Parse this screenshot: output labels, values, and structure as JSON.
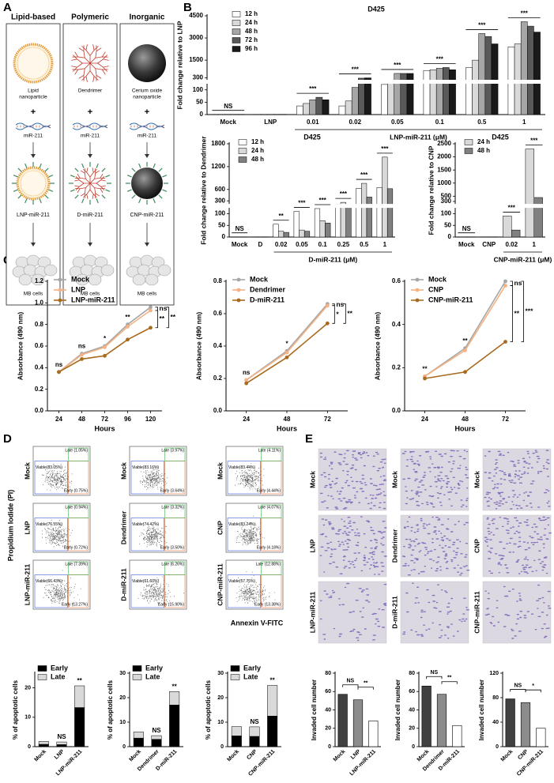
{
  "panel_labels": [
    "A",
    "B",
    "C",
    "D",
    "E"
  ],
  "diagram": {
    "columns": [
      {
        "header": "Lipid-based",
        "carrier": [
          "Lipid",
          "nanoparticle"
        ],
        "plus": "+",
        "mirna": "miR-211",
        "complex": "LNP-miR-211",
        "cells": "MB cells"
      },
      {
        "header": "Polymeric",
        "carrier": [
          "Dendrimer"
        ],
        "plus": "+",
        "mirna": "miR-211",
        "complex": "D-miR-211",
        "cells": "MB cells"
      },
      {
        "header": "Inorganic",
        "carrier": [
          "Cerium oxide",
          "nanoparticle"
        ],
        "plus": "+",
        "mirna": "miR-211",
        "complex": "CNP-miR-211",
        "cells": "MB cells"
      }
    ]
  },
  "flow": {
    "y_label": "Propidium Iodide (PI)",
    "x_label": "Annexin V-FITC",
    "columns": [
      [
        {
          "name": "Mock",
          "late": "Late (1.05%)",
          "viable": "Viable(83.05%)",
          "early": "Early (0.75%)"
        },
        {
          "name": "LNP",
          "late": "Late (0.94%)",
          "viable": "Viable(76.55%)",
          "early": "Early (0.72%)"
        },
        {
          "name": "LNP-miR-211",
          "late": "Late (7.39%)",
          "viable": "Viable(66.43%)",
          "early": "Early (13.27%)"
        }
      ],
      [
        {
          "name": "Mock",
          "late": "Late (3.97%)",
          "viable": "Viable(83.16%)",
          "early": "Early (3.64%)"
        },
        {
          "name": "Dendrimer",
          "late": "Late (3.32%)",
          "viable": "Viable(74.42%)",
          "early": "Early (3.50%)"
        },
        {
          "name": "D-miR-211",
          "late": "Late (6.26%)",
          "viable": "Viable(61.60%)",
          "early": "Early (15.90%)"
        }
      ],
      [
        {
          "name": "Mock",
          "late": "Late (4.11%)",
          "viable": "Viable(83.44%)",
          "early": "Early (4.44%)"
        },
        {
          "name": "CNP",
          "late": "Late (4.07%)",
          "viable": "Viable(83.24%)",
          "early": "Early (4.18%)"
        },
        {
          "name": "CNP-miR-211",
          "late": "Late (12.88%)",
          "viable": "Viable(57.75%)",
          "early": "Early (13.38%)"
        }
      ]
    ]
  },
  "micrographs": {
    "columns": [
      [
        "Mock",
        "LNP",
        "LNP-miR-211"
      ],
      [
        "Mock",
        "Dendrimer",
        "D-miR-211"
      ],
      [
        "Mock",
        "CNP",
        "CNP-miR-211"
      ]
    ]
  },
  "chart_data": [
    {
      "type": "grouped_bar",
      "title": "D425",
      "ylabel": "Fold change relative to LNP",
      "categories": [
        "Mock",
        "LNP",
        "0.01",
        "0.02",
        "0.05",
        "0.1",
        "0.5",
        "1"
      ],
      "xgroup_label": "LNP-miR-211 (μM)",
      "series": [
        {
          "name": "12 h",
          "color": "#ffffff",
          "values": [
            1,
            1,
            35,
            35,
            130,
            800,
            1000,
            2400
          ]
        },
        {
          "name": "24 h",
          "color": "#d9d9d9",
          "values": [
            1,
            1,
            45,
            55,
            180,
            850,
            1500,
            2600
          ]
        },
        {
          "name": "48 h",
          "color": "#a6a6a6",
          "values": [
            1,
            1,
            60,
            110,
            600,
            950,
            3300,
            4100
          ]
        },
        {
          "name": "72 h",
          "color": "#595959",
          "values": [
            1,
            1,
            70,
            280,
            600,
            1000,
            3100,
            3800
          ]
        },
        {
          "name": "96 h",
          "color": "#1a1a1a",
          "values": [
            1,
            1,
            60,
            300,
            600,
            850,
            2600,
            3400
          ]
        }
      ],
      "ylim": [
        0,
        4500
      ],
      "ybreak": [
        120,
        250
      ],
      "yticks": [
        0,
        50,
        100,
        300,
        1500,
        3000,
        4500
      ],
      "significance": [
        "NS",
        null,
        "***",
        "***",
        "***",
        "***",
        "***",
        "***"
      ],
      "legend": "top-left"
    },
    {
      "type": "grouped_bar",
      "title": "D425",
      "ylabel": "Fold change relative to Dendrimer",
      "categories": [
        "Mock",
        "D",
        "0.02",
        "0.05",
        "0.1",
        "0.25",
        "0.5",
        "1"
      ],
      "xgroup_label": "D-miR-211 (μM)",
      "series": [
        {
          "name": "12 h",
          "color": "#ffffff",
          "values": [
            1,
            1,
            55,
            110,
            130,
            220,
            630,
            650
          ]
        },
        {
          "name": "24 h",
          "color": "#d9d9d9",
          "values": [
            1,
            1,
            25,
            30,
            70,
            260,
            760,
            1450
          ]
        },
        {
          "name": "48 h",
          "color": "#808080",
          "values": [
            1,
            1,
            20,
            25,
            60,
            170,
            400,
            620
          ]
        }
      ],
      "ylim": [
        0,
        1800
      ],
      "ybreak": [
        120,
        250
      ],
      "yticks": [
        0,
        50,
        100,
        300,
        600,
        1200,
        1800
      ],
      "significance": [
        "NS",
        null,
        "**",
        "***",
        "***",
        "***",
        "***",
        "***"
      ],
      "legend": "top-left"
    },
    {
      "type": "grouped_bar",
      "title": "D425",
      "ylabel": "Fold change relative to CNP",
      "categories": [
        "Mock",
        "CNP",
        "0.02",
        "1"
      ],
      "xgroup_label": "CNP-miR-211 (μM)",
      "series": [
        {
          "name": "24 h",
          "color": "#d9d9d9",
          "values": [
            1,
            1,
            90,
            2300
          ]
        },
        {
          "name": "48 h",
          "color": "#808080",
          "values": [
            1,
            1,
            30,
            450
          ]
        }
      ],
      "ylim": [
        0,
        2500
      ],
      "ybreak": [
        120,
        250
      ],
      "yticks": [
        0,
        50,
        100,
        300,
        500,
        1000,
        1500,
        2000,
        2500
      ],
      "significance": [
        "NS",
        null,
        "***",
        "***"
      ],
      "legend": "top-left"
    },
    {
      "type": "line",
      "xlabel": "Hours",
      "ylabel": "Absorbance (490 nm)",
      "x": [
        24,
        48,
        72,
        96,
        120
      ],
      "xlim": [
        12,
        132
      ],
      "xticks": [
        24,
        48,
        72,
        96,
        120
      ],
      "ylim": [
        0,
        1.2
      ],
      "yticks": [
        {
          "value": 0,
          "label": "0.0"
        },
        0.2,
        0.4,
        0.6,
        0.8,
        {
          "value": 1,
          "label": "1.0"
        },
        1.2
      ],
      "series": [
        {
          "name": "Mock",
          "color": "#a6a6a6",
          "values": [
            0.36,
            0.53,
            0.6,
            0.8,
            0.96
          ]
        },
        {
          "name": "LNP",
          "color": "#f4b183",
          "values": [
            0.36,
            0.52,
            0.59,
            0.78,
            0.93
          ]
        },
        {
          "name": "LNP-miR-211",
          "color": "#a86a1e",
          "values": [
            0.36,
            0.48,
            0.51,
            0.66,
            0.77
          ]
        }
      ],
      "significance": [
        "ns",
        "ns",
        "*",
        "**",
        null
      ],
      "end_brackets": [
        "ns",
        "**",
        "**"
      ],
      "legend": "top-left"
    },
    {
      "type": "line",
      "xlabel": "Hours",
      "ylabel": "Absorbance (490 nm)",
      "x": [
        24,
        48,
        72
      ],
      "xlim": [
        12,
        84
      ],
      "xticks": [
        24,
        48,
        72
      ],
      "ylim": [
        0,
        0.8
      ],
      "yticks": [
        {
          "value": 0,
          "label": "0.0"
        },
        0.2,
        0.4,
        0.6,
        0.8
      ],
      "series": [
        {
          "name": "Mock",
          "color": "#a6a6a6",
          "values": [
            0.19,
            0.37,
            0.66
          ]
        },
        {
          "name": "Dendrimer",
          "color": "#f4b183",
          "values": [
            0.19,
            0.36,
            0.65
          ]
        },
        {
          "name": "D-miR-211",
          "color": "#a86a1e",
          "values": [
            0.17,
            0.33,
            0.54
          ]
        }
      ],
      "significance": [
        "ns",
        "*",
        null
      ],
      "end_brackets": [
        "ns",
        "*",
        "**"
      ],
      "legend": "top-left"
    },
    {
      "type": "line",
      "xlabel": "Hours",
      "ylabel": "Absorbance (490 nm)",
      "x": [
        24,
        48,
        72
      ],
      "xlim": [
        12,
        84
      ],
      "xticks": [
        24,
        48,
        72
      ],
      "ylim": [
        0,
        0.6
      ],
      "yticks": [
        {
          "value": 0,
          "label": "0.0"
        },
        0.2,
        0.4,
        0.6
      ],
      "series": [
        {
          "name": "Mock",
          "color": "#a6a6a6",
          "values": [
            0.16,
            0.29,
            0.6
          ]
        },
        {
          "name": "CNP",
          "color": "#f4b183",
          "values": [
            0.16,
            0.28,
            0.58
          ]
        },
        {
          "name": "CNP-miR-211",
          "color": "#a86a1e",
          "values": [
            0.15,
            0.18,
            0.32
          ]
        }
      ],
      "significance": [
        "**",
        "**",
        null
      ],
      "end_brackets": [
        "ns",
        "**",
        "***"
      ],
      "legend": "top-left"
    },
    {
      "type": "stacked_bar",
      "ylabel": "% of apoptotic cells",
      "categories": [
        "Mock",
        "LNP",
        "LNP-miR-211"
      ],
      "series": [
        {
          "name": "Early",
          "color": "#000000",
          "values": [
            0.8,
            0.7,
            13.3
          ]
        },
        {
          "name": "Late",
          "color": "#d9d9d9",
          "values": [
            1,
            0.9,
            7.4
          ]
        }
      ],
      "ylim": [
        0,
        25
      ],
      "yticks": [
        0,
        10,
        20
      ],
      "significance": [
        null,
        "NS",
        "**"
      ],
      "legend": "top-left"
    },
    {
      "type": "stacked_bar",
      "ylabel": "% of apoptotic cells",
      "categories": [
        "Mock",
        "Dendrimer",
        "D-miR-211"
      ],
      "series": [
        {
          "name": "Early",
          "color": "#000000",
          "values": [
            3.5,
            3,
            17
          ]
        },
        {
          "name": "Late",
          "color": "#d9d9d9",
          "values": [
            2.5,
            1.5,
            5.5
          ]
        }
      ],
      "ylim": [
        0,
        30
      ],
      "yticks": [
        0,
        10,
        20,
        30
      ],
      "significance": [
        null,
        "NS",
        "**"
      ],
      "legend": "top-left"
    },
    {
      "type": "stacked_bar",
      "ylabel": "% of apoptotic cells",
      "categories": [
        "Mock",
        "CNP",
        "CNP-miR-211"
      ],
      "series": [
        {
          "name": "Early",
          "color": "#000000",
          "values": [
            4.4,
            4.2,
            12.5
          ]
        },
        {
          "name": "Late",
          "color": "#d9d9d9",
          "values": [
            3.8,
            3.9,
            12.5
          ]
        }
      ],
      "ylim": [
        0,
        30
      ],
      "yticks": [
        0,
        10,
        20,
        30
      ],
      "significance": [
        null,
        "NS",
        "**"
      ],
      "legend": "top-left"
    },
    {
      "type": "bar",
      "ylabel": "Invaded cell number",
      "categories": [
        "Mock",
        "LNP",
        "LNP-miR-211"
      ],
      "values": [
        57,
        51,
        28
      ],
      "colors": [
        "#404040",
        "#8c8c8c",
        "#ffffff"
      ],
      "ylim": [
        0,
        80
      ],
      "yticks": [
        0,
        20,
        40,
        60,
        80
      ],
      "brackets": [
        "NS",
        "**"
      ]
    },
    {
      "type": "bar",
      "ylabel": "Invaded cell number",
      "categories": [
        "Mock",
        "Dendrimer",
        "D-miR-211"
      ],
      "values": [
        66,
        57,
        23
      ],
      "colors": [
        "#404040",
        "#8c8c8c",
        "#ffffff"
      ],
      "ylim": [
        0,
        80
      ],
      "yticks": [
        0,
        20,
        40,
        60,
        80
      ],
      "brackets": [
        "NS",
        "**"
      ]
    },
    {
      "type": "bar",
      "ylabel": "Invaded cell number",
      "categories": [
        "Mock",
        "CNP",
        "CNP-miR-211"
      ],
      "values": [
        78,
        72,
        30
      ],
      "colors": [
        "#404040",
        "#8c8c8c",
        "#ffffff"
      ],
      "ylim": [
        0,
        120
      ],
      "yticks": [
        0,
        40,
        80,
        120
      ],
      "brackets": [
        "NS",
        "*"
      ]
    }
  ]
}
